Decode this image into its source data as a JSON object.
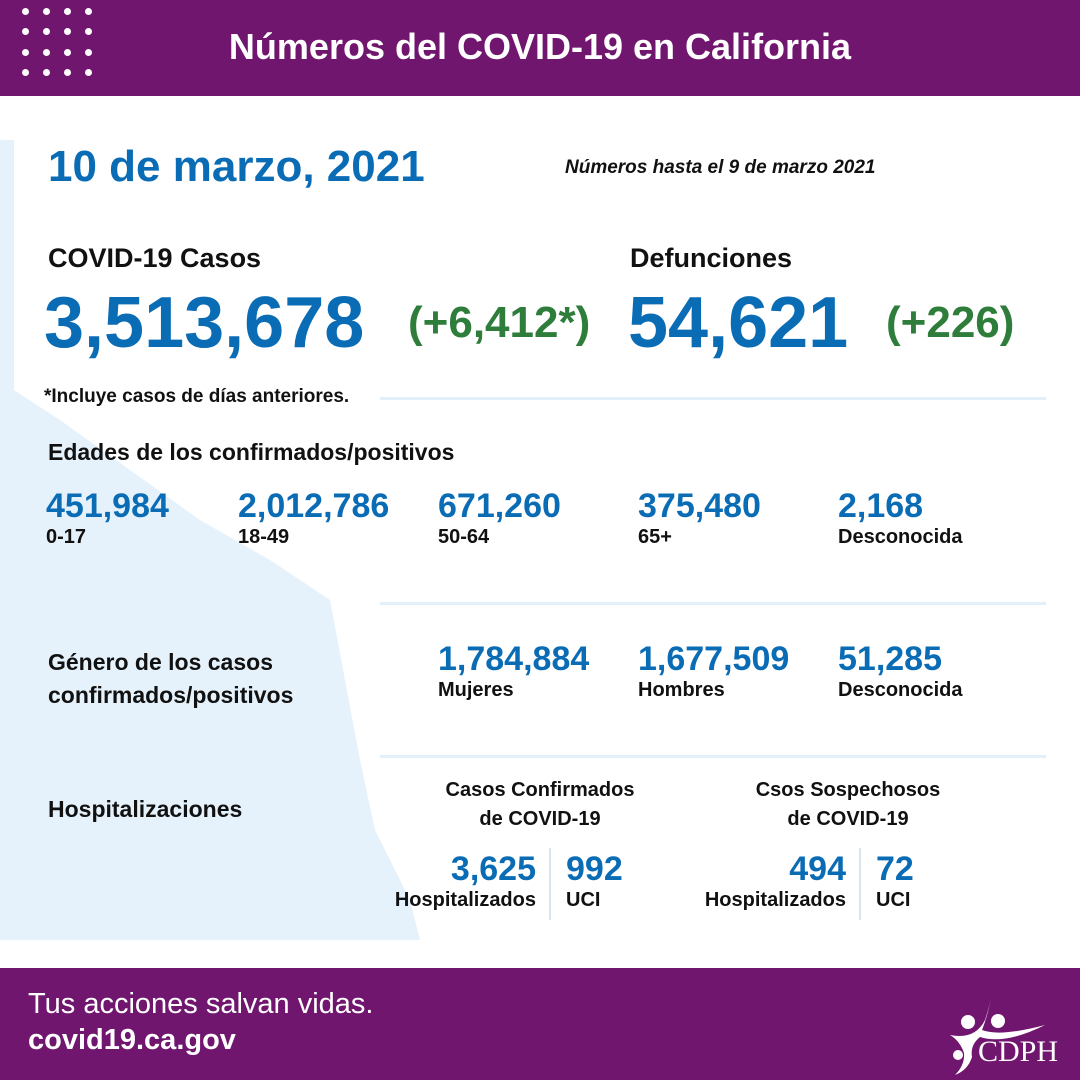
{
  "header": {
    "title": "Números del COVID-19 en California"
  },
  "date": "10 de marzo, 2021",
  "as_of": "Números hasta el 9 de marzo 2021",
  "cases": {
    "label": "COVID-19 Casos",
    "value": "3,513,678",
    "change": "(+6,412*)",
    "note": "*Incluye casos de días anteriores."
  },
  "deaths": {
    "label": "Defunciones",
    "value": "54,621",
    "change": "(+226)"
  },
  "ages": {
    "title": "Edades de los confirmados/positivos",
    "items": [
      {
        "value": "451,984",
        "label": "0-17"
      },
      {
        "value": "2,012,786",
        "label": "18-49"
      },
      {
        "value": "671,260",
        "label": "50-64"
      },
      {
        "value": "375,480",
        "label": "65+"
      },
      {
        "value": "2,168",
        "label": "Desconocida"
      }
    ]
  },
  "gender": {
    "title_line1": "Género de los casos",
    "title_line2": "confirmados/positivos",
    "items": [
      {
        "value": "1,784,884",
        "label": "Mujeres"
      },
      {
        "value": "1,677,509",
        "label": "Hombres"
      },
      {
        "value": "51,285",
        "label": "Desconocida"
      }
    ]
  },
  "hosp": {
    "title": "Hospitalizaciones",
    "confirmed": {
      "line1": "Casos Confirmados",
      "line2": "de COVID-19",
      "hosp_value": "3,625",
      "hosp_label": "Hospitalizados",
      "icu_value": "992",
      "icu_label": "UCI"
    },
    "suspected": {
      "line1": "Csos Sospechosos",
      "line2": "de COVID-19",
      "hosp_value": "494",
      "hosp_label": "Hospitalizados",
      "icu_value": "72",
      "icu_label": "UCI"
    }
  },
  "footer": {
    "tagline": "Tus acciones salvan vidas.",
    "url": "covid19.ca.gov",
    "logo_text": "CDPH"
  },
  "colors": {
    "purple": "#71166e",
    "blue": "#0a6cb5",
    "green": "#2e7d3a",
    "map": "#e3f0fa"
  }
}
